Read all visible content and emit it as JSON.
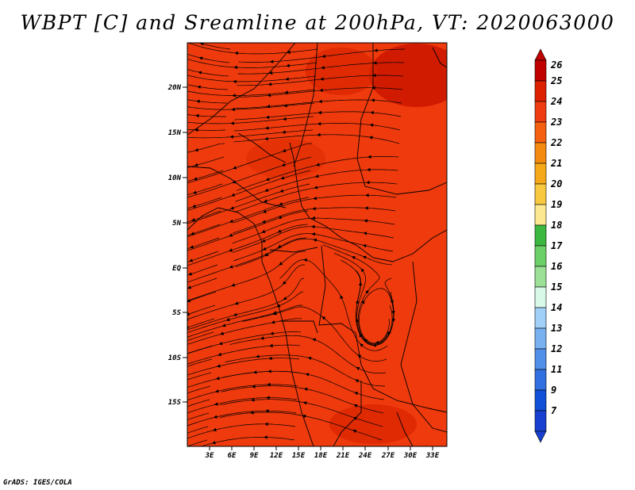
{
  "title": "WBPT [C] and Sreamline at 200hPa, VT: 2020063000",
  "credit": "GrADS: IGES/COLA",
  "map": {
    "lat_labels": [
      "20N",
      "15N",
      "10N",
      "5N",
      "EQ",
      "5S",
      "10S",
      "15S"
    ],
    "lon_labels": [
      "3E",
      "6E",
      "9E",
      "12E",
      "15E",
      "18E",
      "21E",
      "24E",
      "27E",
      "30E",
      "33E"
    ],
    "shading_color": "#ee3a0c",
    "darker_color": "#cc1800",
    "streamline_color": "#000000"
  },
  "colorbar": {
    "labels": [
      "26",
      "25",
      "24",
      "23",
      "22",
      "21",
      "20",
      "19",
      "18",
      "17",
      "16",
      "15",
      "14",
      "13",
      "12",
      "11",
      "9",
      "7"
    ],
    "colors": [
      "#c00000",
      "#dd2000",
      "#ef3c10",
      "#f56010",
      "#f58a10",
      "#f5a818",
      "#f8c840",
      "#fbe890",
      "#3cb840",
      "#6cd068",
      "#9ce098",
      "#d8f8e8",
      "#a0d0f8",
      "#78b0f0",
      "#5090e8",
      "#3070e0",
      "#1050d8",
      "#1840d0"
    ]
  }
}
